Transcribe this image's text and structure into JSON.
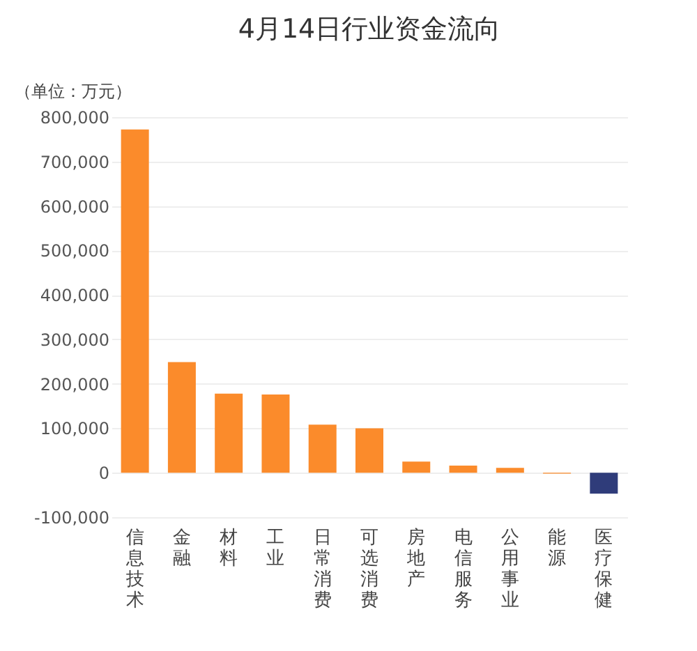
{
  "chart_data": {
    "type": "bar",
    "title": "4月14日行业资金流向",
    "ylabel": "（单位：万元）",
    "categories": [
      "信息技术",
      "金融",
      "材料",
      "工业",
      "日常消费",
      "可选消费",
      "房地产",
      "电信服务",
      "公用事业",
      "能源",
      "医疗保健"
    ],
    "values": [
      772000,
      249000,
      178000,
      176000,
      108000,
      100000,
      25000,
      16000,
      11000,
      -2000,
      -47000
    ],
    "colors": [
      "#fb8b2b",
      "#fb8b2b",
      "#fb8b2b",
      "#fb8b2b",
      "#fb8b2b",
      "#fb8b2b",
      "#fb8b2b",
      "#fb8b2b",
      "#fb8b2b",
      "#fb8b2b",
      "#2f3c7a"
    ],
    "ylim": [
      -100000,
      800000
    ],
    "yticks": [
      {
        "value": -100000,
        "label": "-100,000"
      },
      0,
      {
        "value": 100000,
        "label": "100,000"
      },
      {
        "value": 200000,
        "label": "200,000"
      },
      {
        "value": 300000,
        "label": "300,000"
      },
      {
        "value": 400000,
        "label": "400,000"
      },
      {
        "value": 500000,
        "label": "500,000"
      },
      {
        "value": 600000,
        "label": "600,000"
      },
      {
        "value": 700000,
        "label": "700,000"
      },
      {
        "value": 800000,
        "label": "800,000"
      }
    ],
    "grid": "y"
  }
}
